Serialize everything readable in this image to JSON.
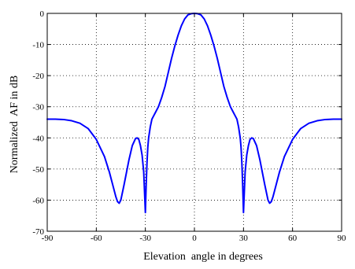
{
  "chart_data": {
    "type": "line",
    "title": "",
    "xlabel": "Elevation  angle in degrees",
    "ylabel": "Normalized  AF in dB",
    "xlim": [
      -90,
      90
    ],
    "ylim": [
      -70,
      0
    ],
    "xticks": [
      -90,
      -60,
      -30,
      0,
      30,
      60,
      90
    ],
    "yticks": [
      0,
      -10,
      -20,
      -30,
      -40,
      -50,
      -60,
      -70
    ],
    "xtick_labels": [
      "-90",
      "-60",
      "-30",
      "0",
      "30",
      "60",
      "90"
    ],
    "ytick_labels": [
      "0",
      "-10",
      "-20",
      "-30",
      "-40",
      "-50",
      "-60",
      "-70"
    ],
    "grid": true,
    "grid_style": "dotted",
    "series": [
      {
        "color": "#0000ff",
        "x": [
          -90,
          -85,
          -80,
          -75,
          -70,
          -65,
          -60,
          -55,
          -52,
          -50,
          -48,
          -47,
          -46,
          -45,
          -43,
          -40,
          -38,
          -36,
          -35,
          -34,
          -33,
          -32,
          -31,
          -30,
          -29.5,
          -29,
          -28.5,
          -28,
          -27,
          -26,
          -25,
          -24,
          -22,
          -20,
          -18,
          -16,
          -14,
          -12,
          -10,
          -8,
          -6,
          -4,
          -2,
          0,
          2,
          4,
          6,
          8,
          10,
          12,
          14,
          16,
          18,
          20,
          22,
          24,
          25,
          26,
          27,
          28,
          28.5,
          29,
          29.5,
          30,
          31,
          32,
          33,
          34,
          35,
          36,
          38,
          40,
          43,
          45,
          46,
          47,
          48,
          50,
          52,
          55,
          60,
          65,
          70,
          75,
          80,
          85,
          90
        ],
        "y": [
          -34,
          -34,
          -34.1,
          -34.5,
          -35.3,
          -37,
          -40.5,
          -46,
          -51,
          -55,
          -59,
          -60.5,
          -61,
          -60,
          -55,
          -47,
          -42.5,
          -40.2,
          -40,
          -40.5,
          -42.5,
          -45.5,
          -51,
          -64,
          -55,
          -48,
          -43,
          -40,
          -36.5,
          -34,
          -33,
          -32,
          -30,
          -27,
          -23.5,
          -19,
          -14.5,
          -10.5,
          -7,
          -4,
          -1.8,
          -0.5,
          -0.1,
          0,
          -0.1,
          -0.5,
          -1.8,
          -4,
          -7,
          -10.5,
          -14.5,
          -19,
          -23.5,
          -27,
          -30,
          -32,
          -33,
          -34,
          -36.5,
          -40,
          -43,
          -48,
          -55,
          -64,
          -51,
          -45.5,
          -42.5,
          -40.5,
          -40,
          -40.2,
          -42.5,
          -47,
          -55,
          -60,
          -61,
          -60.5,
          -59,
          -55,
          -51,
          -46,
          -40.5,
          -37,
          -35.3,
          -34.5,
          -34.1,
          -34,
          -34
        ]
      }
    ]
  }
}
